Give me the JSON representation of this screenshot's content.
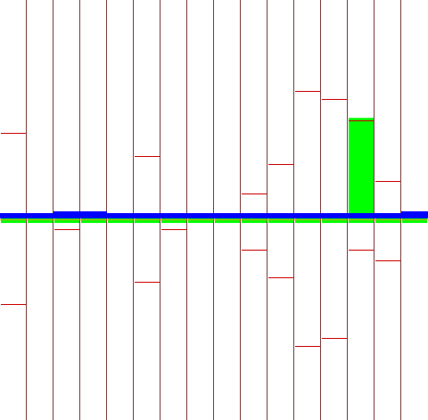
{
  "colors": {
    "background": "#ffffff",
    "divider": "#7a3b3b",
    "level_marker": "#cc0000",
    "green_fill": "#00ff00",
    "blue_bar": "#0000ff",
    "gold_line": "#c8a000"
  },
  "chart_data": {
    "type": "bar",
    "columns": 16,
    "baseline": 0,
    "ylim": [
      -1,
      1
    ],
    "level_pairs": [
      [
        0.41,
        -0.41
      ],
      [
        null,
        null
      ],
      [
        -0.05,
        null
      ],
      [
        null,
        null
      ],
      [
        null,
        null
      ],
      [
        0.3,
        -0.3
      ],
      [
        -0.05,
        null
      ],
      [
        null,
        null
      ],
      [
        null,
        null
      ],
      [
        0.12,
        -0.15
      ],
      [
        0.26,
        -0.28
      ],
      [
        0.61,
        -0.61
      ],
      [
        0.57,
        -0.57
      ],
      [
        0.47,
        -0.15
      ],
      [
        0.18,
        -0.2
      ],
      [
        null,
        null
      ]
    ],
    "green_values": [
      0.0,
      0.0,
      0.01,
      0.0,
      0.0,
      0.01,
      0.0,
      0.01,
      0.0,
      0.0,
      0.0,
      0.0,
      0.0,
      0.48,
      0.0,
      0.01
    ],
    "blue_values": [
      0.01,
      0.01,
      0.02,
      0.02,
      0.01,
      0.01,
      0.01,
      0.01,
      0.01,
      0.01,
      0.01,
      0.01,
      0.01,
      0.01,
      0.01,
      0.02
    ]
  }
}
